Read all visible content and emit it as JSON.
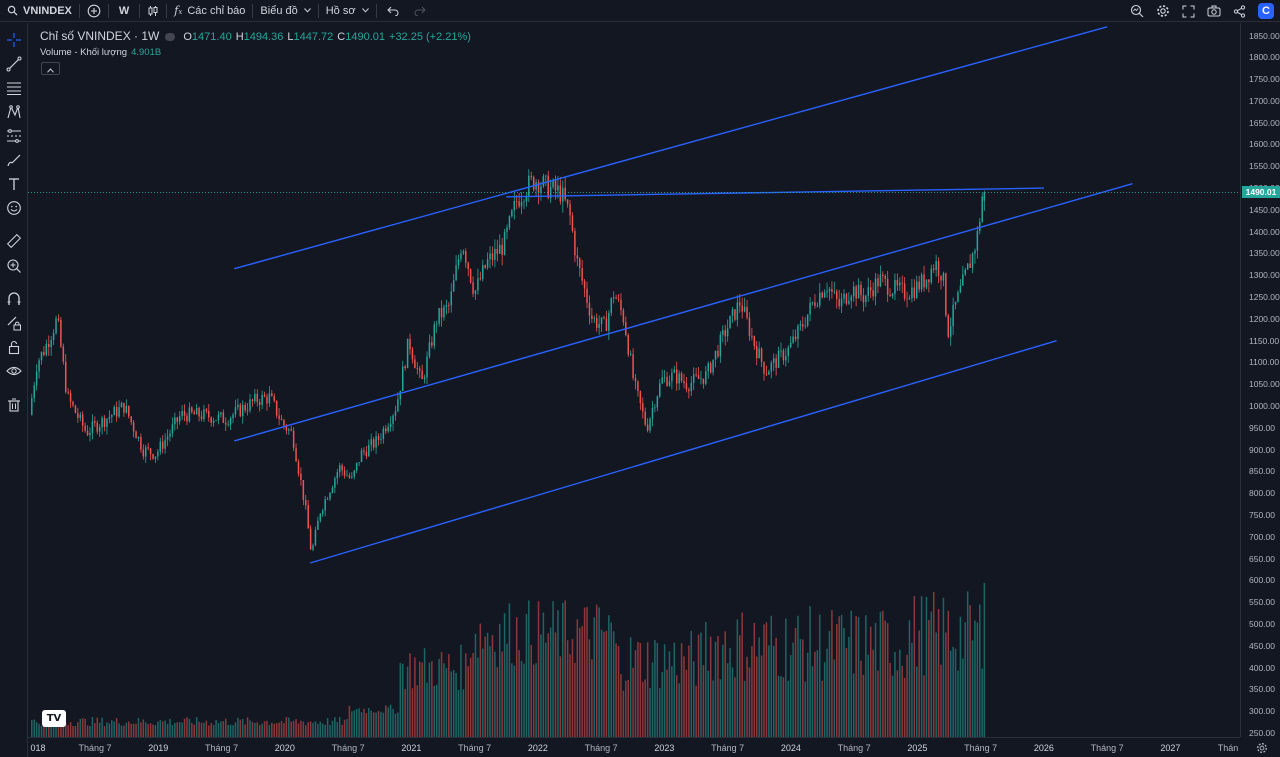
{
  "toolbar": {
    "symbol": "VNINDEX",
    "interval": "W",
    "indicators_label": "Các chỉ báo",
    "chart_menu_label": "Biểu đồ",
    "profile_label": "Hồ sơ",
    "brand_letter": "C"
  },
  "legend": {
    "title": "Chỉ số VNINDEX · 1W",
    "o_label": "O",
    "o": "1471.40",
    "h_label": "H",
    "h": "1494.36",
    "l_label": "L",
    "l": "1447.72",
    "c_label": "C",
    "c": "1490.01",
    "change": "+32.25 (+2.21%)",
    "volume_label": "Volume - Khối lượng",
    "volume_value": "4.901B"
  },
  "price_tag": "1490.01",
  "colors": {
    "up": "#26a69a",
    "down": "#ef5350",
    "trendline": "#2962ff",
    "background": "#131722"
  },
  "icons": [
    "crosshair-icon",
    "trendline-icon",
    "fib-icon",
    "pattern-icon",
    "projection-icon",
    "brush-icon",
    "text-icon",
    "emoji-icon",
    "ruler-icon",
    "zoom-icon",
    "magnet-icon",
    "lock-drawing-icon",
    "lock-icon",
    "eye-icon",
    "trash-icon"
  ],
  "chart_data": {
    "type": "candlestick",
    "title": "Chỉ số VNINDEX · 1W",
    "interval": "1W",
    "price_axis": {
      "ticks": [
        "250.00",
        "300.00",
        "350.00",
        "400.00",
        "450.00",
        "500.00",
        "550.00",
        "600.00",
        "650.00",
        "700.00",
        "750.00",
        "800.00",
        "850.00",
        "900.00",
        "950.00",
        "1000.00",
        "1050.00",
        "1100.00",
        "1150.00",
        "1200.00",
        "1250.00",
        "1300.00",
        "1350.00",
        "1400.00",
        "1450.00",
        "1500.00",
        "1550.00",
        "1600.00",
        "1650.00",
        "1700.00",
        "1750.00",
        "1800.00",
        "1850.00"
      ],
      "range": [
        250,
        1850
      ]
    },
    "time_axis": {
      "labels": [
        {
          "t": 2018.0,
          "label": "018",
          "year": true
        },
        {
          "t": 2018.5,
          "label": "Tháng 7"
        },
        {
          "t": 2019.0,
          "label": "2019",
          "year": true
        },
        {
          "t": 2019.5,
          "label": "Tháng 7"
        },
        {
          "t": 2020.0,
          "label": "2020",
          "year": true
        },
        {
          "t": 2020.5,
          "label": "Tháng 7"
        },
        {
          "t": 2021.0,
          "label": "2021",
          "year": true
        },
        {
          "t": 2021.5,
          "label": "Tháng 7"
        },
        {
          "t": 2022.0,
          "label": "2022",
          "year": true
        },
        {
          "t": 2022.5,
          "label": "Tháng 7"
        },
        {
          "t": 2023.0,
          "label": "2023",
          "year": true
        },
        {
          "t": 2023.5,
          "label": "Tháng 7"
        },
        {
          "t": 2024.0,
          "label": "2024",
          "year": true
        },
        {
          "t": 2024.5,
          "label": "Tháng 7"
        },
        {
          "t": 2025.0,
          "label": "2025",
          "year": true
        },
        {
          "t": 2025.5,
          "label": "Tháng 7"
        },
        {
          "t": 2026.0,
          "label": "2026",
          "year": true
        },
        {
          "t": 2026.5,
          "label": "Tháng 7"
        },
        {
          "t": 2027.0,
          "label": "2027",
          "year": true
        },
        {
          "t": 2027.5,
          "label": "Thán"
        }
      ],
      "range": [
        2017.97,
        2027.55
      ]
    },
    "price_path": [
      [
        2018.0,
        980
      ],
      [
        2018.06,
        1100
      ],
      [
        2018.12,
        1130
      ],
      [
        2018.22,
        1200
      ],
      [
        2018.3,
        1020
      ],
      [
        2018.45,
        940
      ],
      [
        2018.55,
        960
      ],
      [
        2018.75,
        1000
      ],
      [
        2018.9,
        900
      ],
      [
        2019.0,
        890
      ],
      [
        2019.2,
        980
      ],
      [
        2019.35,
        980
      ],
      [
        2019.55,
        970
      ],
      [
        2019.8,
        1015
      ],
      [
        2019.9,
        1020
      ],
      [
        2020.0,
        960
      ],
      [
        2020.08,
        935
      ],
      [
        2020.18,
        770
      ],
      [
        2020.23,
        660
      ],
      [
        2020.3,
        760
      ],
      [
        2020.45,
        860
      ],
      [
        2020.55,
        830
      ],
      [
        2020.62,
        890
      ],
      [
        2020.75,
        920
      ],
      [
        2020.9,
        1000
      ],
      [
        2021.0,
        1150
      ],
      [
        2021.1,
        1050
      ],
      [
        2021.22,
        1200
      ],
      [
        2021.32,
        1230
      ],
      [
        2021.42,
        1380
      ],
      [
        2021.52,
        1260
      ],
      [
        2021.62,
        1330
      ],
      [
        2021.75,
        1370
      ],
      [
        2021.85,
        1470
      ],
      [
        2021.92,
        1500
      ],
      [
        2022.0,
        1520
      ],
      [
        2022.1,
        1500
      ],
      [
        2022.2,
        1490
      ],
      [
        2022.27,
        1440
      ],
      [
        2022.33,
        1330
      ],
      [
        2022.45,
        1200
      ],
      [
        2022.55,
        1180
      ],
      [
        2022.62,
        1260
      ],
      [
        2022.7,
        1200
      ],
      [
        2022.78,
        1050
      ],
      [
        2022.88,
        950
      ],
      [
        2022.95,
        1020
      ],
      [
        2023.0,
        1060
      ],
      [
        2023.1,
        1070
      ],
      [
        2023.2,
        1050
      ],
      [
        2023.35,
        1070
      ],
      [
        2023.5,
        1170
      ],
      [
        2023.62,
        1240
      ],
      [
        2023.72,
        1150
      ],
      [
        2023.82,
        1080
      ],
      [
        2024.0,
        1130
      ],
      [
        2024.1,
        1180
      ],
      [
        2024.2,
        1240
      ],
      [
        2024.3,
        1280
      ],
      [
        2024.4,
        1230
      ],
      [
        2024.5,
        1270
      ],
      [
        2024.6,
        1250
      ],
      [
        2024.72,
        1290
      ],
      [
        2024.82,
        1270
      ],
      [
        2024.92,
        1260
      ],
      [
        2025.0,
        1270
      ],
      [
        2025.08,
        1290
      ],
      [
        2025.16,
        1330
      ],
      [
        2025.22,
        1300
      ],
      [
        2025.26,
        1170
      ],
      [
        2025.32,
        1230
      ],
      [
        2025.4,
        1300
      ],
      [
        2025.46,
        1350
      ],
      [
        2025.5,
        1400
      ],
      [
        2025.535,
        1490
      ]
    ],
    "last_candle": {
      "open": 1471.4,
      "high": 1494.36,
      "low": 1447.72,
      "close": 1490.01,
      "volume": "4.901B"
    },
    "trendlines": [
      {
        "name": "upper-channel-line",
        "points": [
          [
            2019.6,
            1315
          ],
          [
            2026.5,
            1870
          ]
        ]
      },
      {
        "name": "middle-channel-line",
        "points": [
          [
            2019.6,
            920
          ],
          [
            2026.7,
            1510
          ]
        ]
      },
      {
        "name": "lower-channel-line",
        "points": [
          [
            2020.2,
            640
          ],
          [
            2026.1,
            1150
          ]
        ]
      },
      {
        "name": "resistance-line",
        "points": [
          [
            2021.75,
            1480
          ],
          [
            2026.0,
            1500
          ]
        ]
      }
    ],
    "volume_scale": {
      "max_bar": 4.901
    }
  }
}
